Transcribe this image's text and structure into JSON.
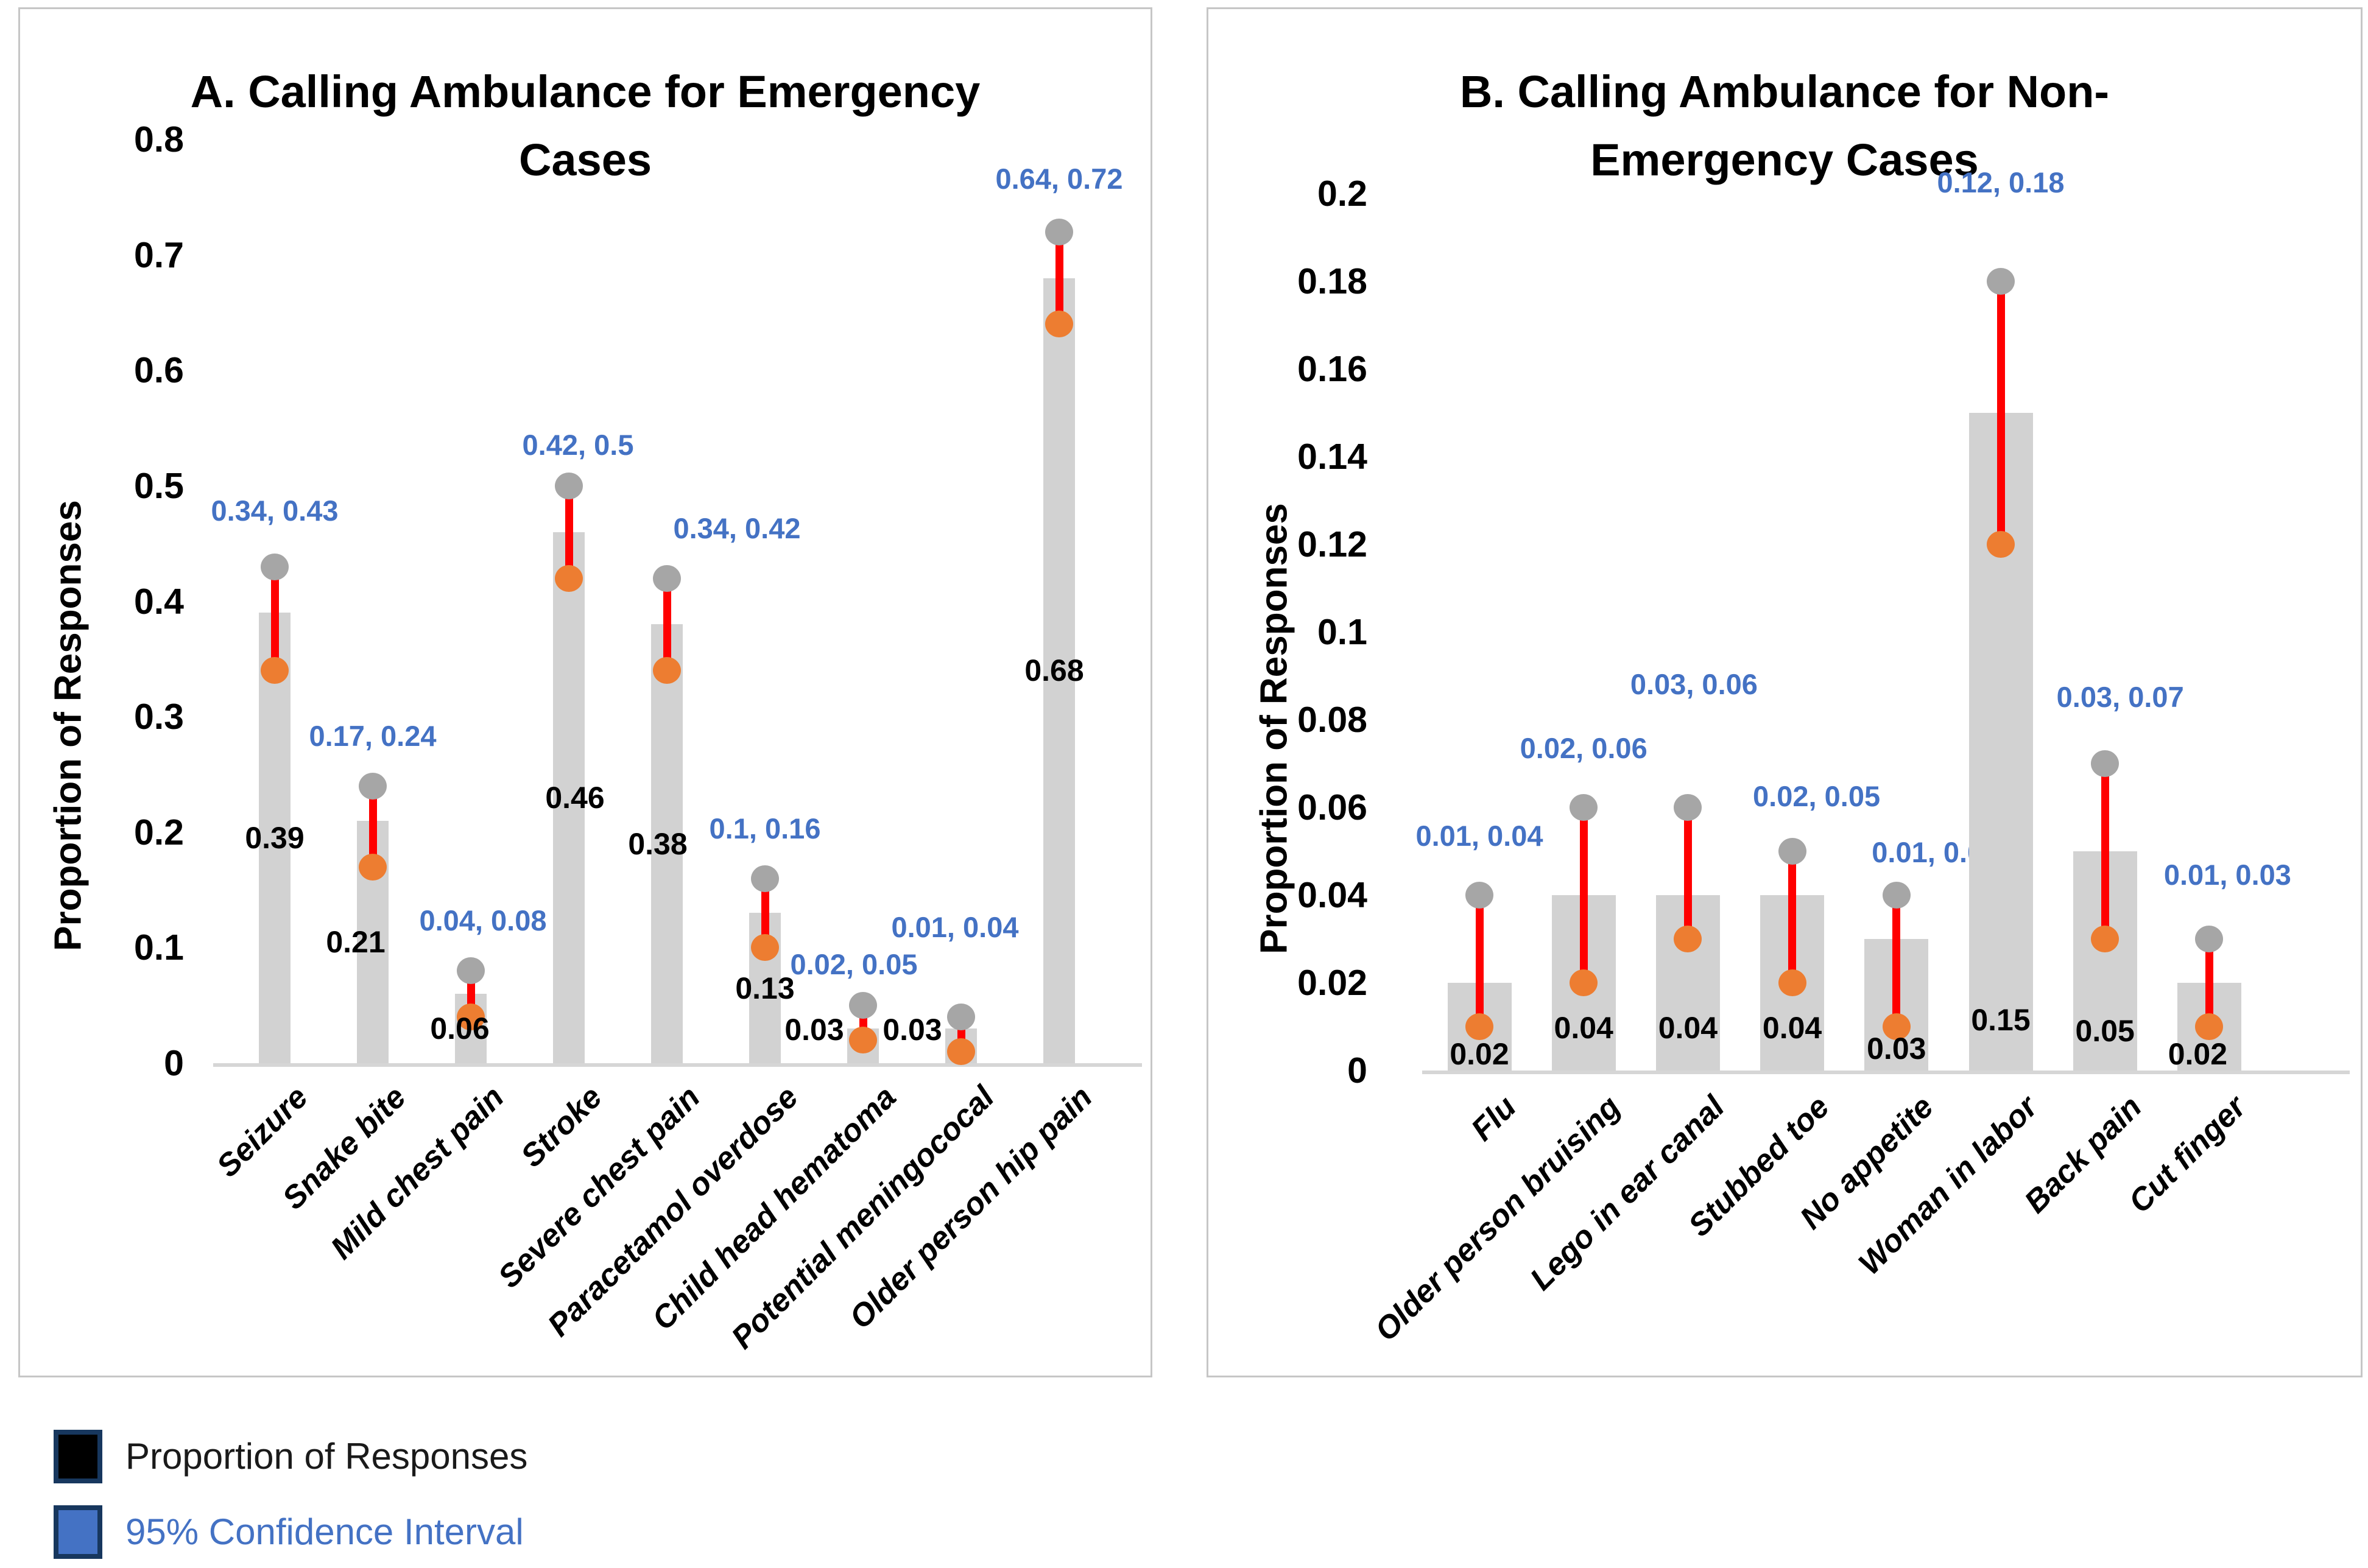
{
  "legend": {
    "items": [
      {
        "label": "Proportion of Responses",
        "swatch_color": "#000000",
        "text_color": "#1a1a1a"
      },
      {
        "label": "95% Confidence Interval",
        "swatch_color": "#4472C4",
        "text_color": "#4472C4"
      }
    ],
    "swatch_border_color": "#17375E"
  },
  "colors": {
    "bar": "#d2d2d2",
    "error_line": "#ff0000",
    "ci_low_dot": "#ED7D31",
    "ci_high_dot": "#a6a6a6",
    "ci_label_text": "#4472C4",
    "axis_line": "#d6d6d6",
    "panel_border": "#c6c6c6"
  },
  "chart_data": [
    {
      "type": "bar",
      "panel": "A",
      "title_lines": [
        "A. Calling Ambulance for Emergency",
        "Cases"
      ],
      "ylabel": "Proportion of Responses",
      "ylim": [
        0,
        0.8
      ],
      "grid": false,
      "legend_position": "bottom-left-of-figure",
      "y_ticks": [
        "0.8",
        "0.7",
        "0.6",
        "0.5",
        "0.4",
        "0.3",
        "0.2",
        "0.1",
        "0"
      ],
      "categories": [
        "Seizure",
        "Snake bite",
        "Mild chest pain",
        "Stroke",
        "Severe chest pain",
        "Paracetamol overdose",
        "Child head hematoma",
        "Potential meningococal",
        "Older person hip pain"
      ],
      "values": [
        0.39,
        0.21,
        0.06,
        0.46,
        0.38,
        0.13,
        0.03,
        0.03,
        0.68
      ],
      "value_labels": [
        "0.39",
        "0.21",
        "0.06",
        "0.46",
        "0.38",
        "0.13",
        "0.03",
        "0.03",
        "0.68"
      ],
      "ci_low": [
        0.34,
        0.17,
        0.04,
        0.42,
        0.34,
        0.1,
        0.02,
        0.01,
        0.64
      ],
      "ci_high": [
        0.43,
        0.24,
        0.08,
        0.5,
        0.42,
        0.16,
        0.05,
        0.04,
        0.72
      ],
      "ci_labels": [
        "0.34, 0.43",
        "0.17, 0.24",
        "0.04, 0.08",
        "0.42, 0.5",
        "0.34, 0.42",
        "0.1, 0.16",
        "0.02, 0.05",
        "0.01, 0.04",
        "0.64, 0.72"
      ],
      "annotation_offsets": {
        "value_dx": [
          0,
          -28,
          -18,
          10,
          -15,
          0,
          -80,
          -80,
          -8
        ],
        "ci_dx": [
          0,
          0,
          20,
          15,
          115,
          0,
          -15,
          -10,
          0
        ],
        "ci_dy": [
          5,
          15,
          15,
          30,
          15,
          15,
          30,
          -50,
          10
        ]
      }
    },
    {
      "type": "bar",
      "panel": "B",
      "title_lines": [
        "B. Calling Ambulance for Non-",
        "Emergency Cases"
      ],
      "ylabel": "Proportion of Responses",
      "ylim": [
        0,
        0.2
      ],
      "grid": false,
      "legend_position": "bottom-left-of-figure",
      "y_ticks": [
        "0.2",
        "0.18",
        "0.16",
        "0.14",
        "0.12",
        "0.1",
        "0.08",
        "0.06",
        "0.04",
        "0.02",
        "0"
      ],
      "categories": [
        "Flu",
        "Older person bruising",
        "Lego in ear canal",
        "Stubbed toe",
        "No appetite",
        "Woman in labor",
        "Back pain",
        "Cut finger"
      ],
      "values": [
        0.02,
        0.04,
        0.04,
        0.04,
        0.03,
        0.15,
        0.05,
        0.02
      ],
      "value_labels": [
        "0.02",
        "0.04",
        "0.04",
        "0.04",
        "0.03",
        "0.15",
        "0.05",
        "0.02"
      ],
      "ci_low": [
        0.01,
        0.02,
        0.03,
        0.02,
        0.01,
        0.12,
        0.03,
        0.01
      ],
      "ci_high": [
        0.04,
        0.06,
        0.06,
        0.05,
        0.04,
        0.18,
        0.07,
        0.03
      ],
      "ci_labels": [
        "0.01, 0.04",
        "0.02, 0.06",
        "0.03, 0.06",
        "0.02, 0.05",
        "0.01, 0.04",
        "0.12, 0.18",
        "0.03, 0.07",
        "0.01, 0.03"
      ],
      "annotation_offsets": {
        "value_dx": [
          0,
          0,
          0,
          0,
          0,
          0,
          0,
          -19
        ],
        "value_base_offsets": [
          27,
          70,
          70,
          70,
          36,
          83,
          65,
          27
        ],
        "ci_dx": [
          0,
          0,
          10,
          40,
          64,
          0,
          25,
          30
        ],
        "ci_dy": [
          0,
          0,
          -105,
          7,
          27,
          -65,
          -12,
          -8
        ]
      }
    }
  ]
}
